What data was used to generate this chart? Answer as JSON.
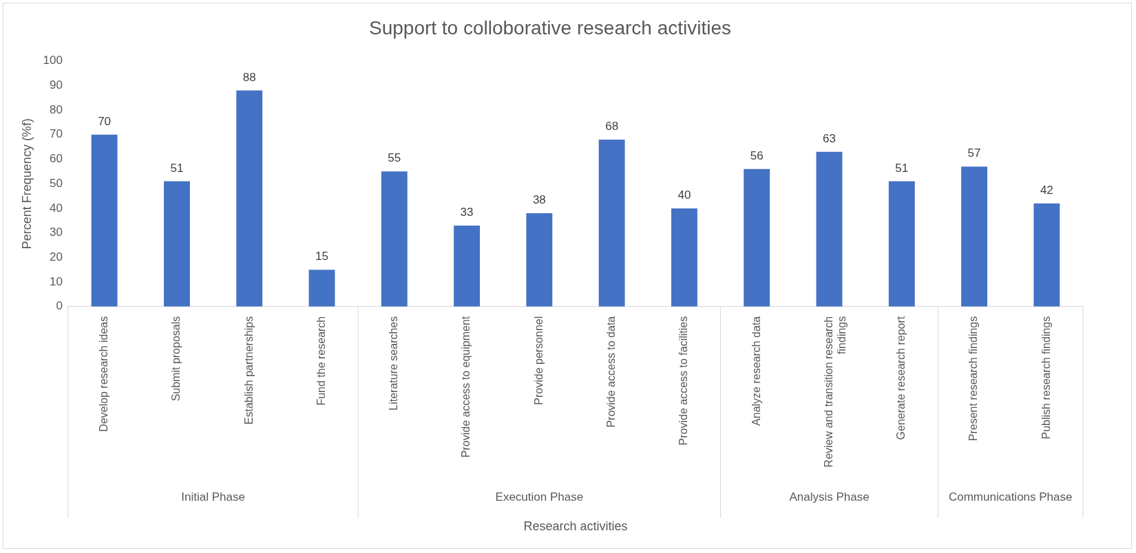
{
  "chart_data": {
    "type": "bar",
    "title": "Support to colloborative research activities",
    "xlabel": "Research activities",
    "ylabel": "Percent Frequency (%f)",
    "categories": [
      "Develop research ideas",
      "Submit proposals",
      "Establish partnerships",
      "Fund the research",
      "Literature searches",
      "Provide access to equipment",
      "Provide personnel",
      "Provide access to data",
      "Provide access to facilities",
      "Analyze research data",
      "Review and transition research findings",
      "Generate research report",
      "Present research findings",
      "Publish research findings"
    ],
    "values": [
      70,
      51,
      88,
      15,
      55,
      33,
      38,
      68,
      40,
      56,
      63,
      51,
      57,
      42
    ],
    "color": "#4472c4",
    "ylim": [
      0,
      100
    ],
    "yticks": [
      0,
      10,
      20,
      30,
      40,
      50,
      60,
      70,
      80,
      90,
      100
    ],
    "data_labels": true,
    "grid": false,
    "legend": false,
    "annotations": [
      "Initial Phase",
      "Execution Phase",
      "Analysis Phase",
      "Communications Phase"
    ]
  }
}
